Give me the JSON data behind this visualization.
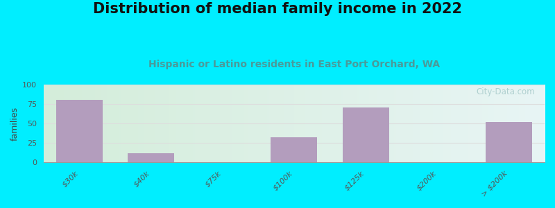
{
  "title": "Distribution of median family income in 2022",
  "subtitle": "Hispanic or Latino residents in East Port Orchard, WA",
  "ylabel": "families",
  "categories": [
    "$30k",
    "$40k",
    "$75k",
    "$100k",
    "$125k",
    "$200k",
    "> $200k"
  ],
  "values": [
    80,
    12,
    0,
    32,
    71,
    0,
    52
  ],
  "bar_color": "#b39dbd",
  "bg_outer": "#00eeff",
  "bg_left_color": "#d4edda",
  "bg_right_color": "#e8f5f5",
  "grid_color": "#dddddd",
  "ylim": [
    0,
    100
  ],
  "yticks": [
    0,
    25,
    50,
    75,
    100
  ],
  "title_fontsize": 15,
  "subtitle_fontsize": 10,
  "subtitle_color": "#4a9a9a",
  "ylabel_fontsize": 9,
  "tick_label_fontsize": 8,
  "watermark": "City-Data.com",
  "watermark_color": "#aacccc"
}
